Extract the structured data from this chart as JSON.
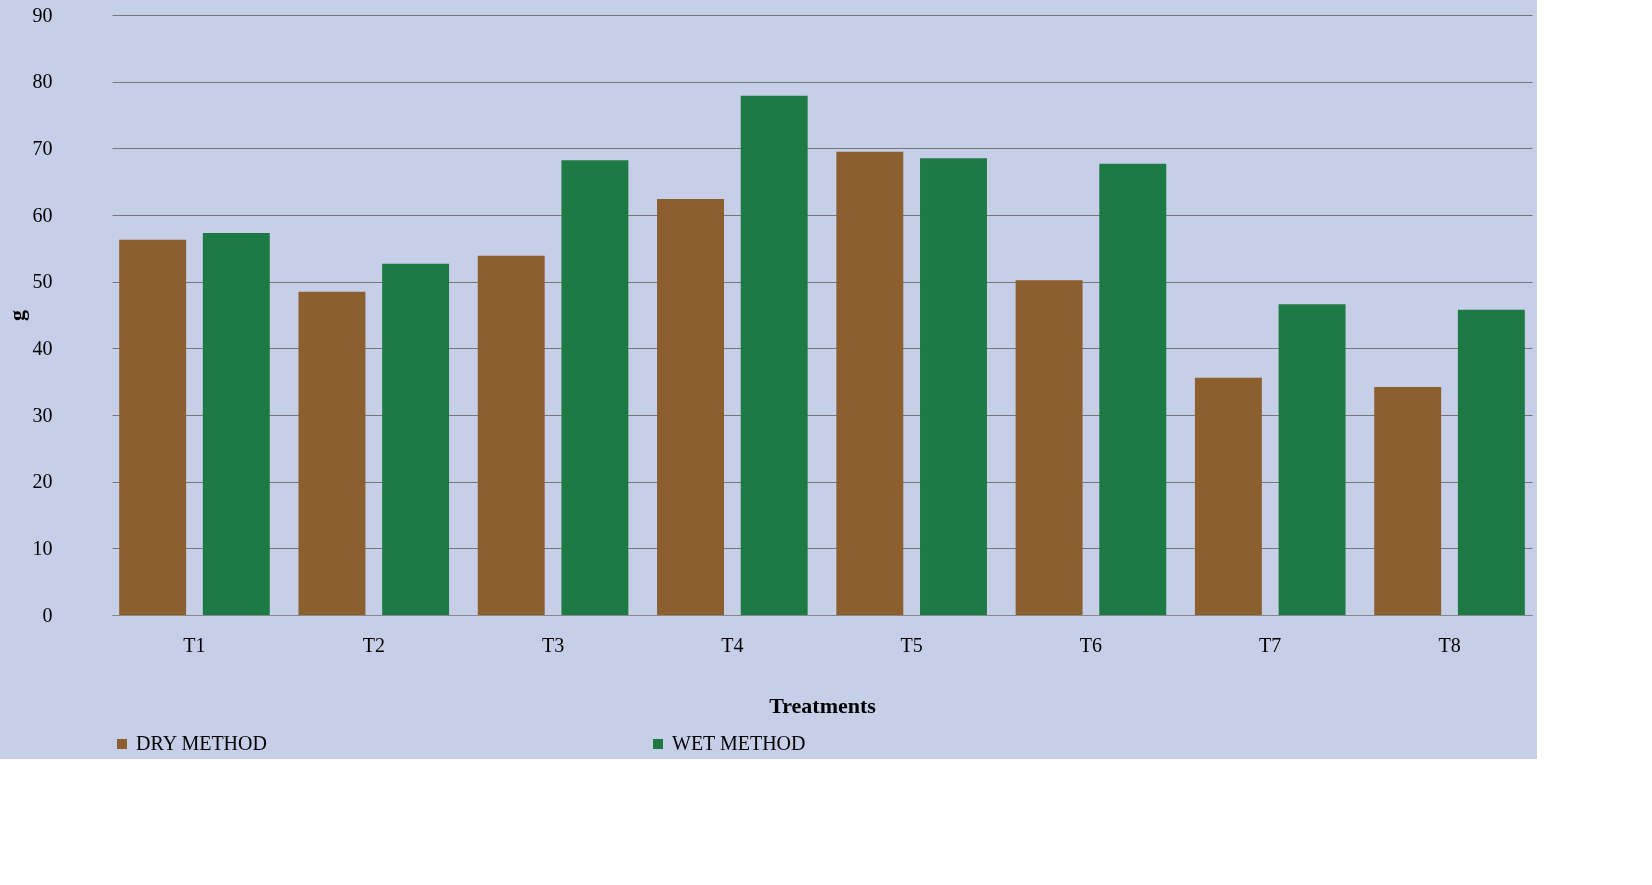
{
  "chart_data": {
    "type": "bar",
    "xlabel": "Treatments",
    "ylabel": "g",
    "categories": [
      "T1",
      "T2",
      "T3",
      "T4",
      "T5",
      "T6",
      "T7",
      "T8"
    ],
    "series": [
      {
        "name": "DRY METHOD",
        "color": "#8c5f2f",
        "values": [
          56.3,
          48.5,
          53.9,
          62.4,
          69.5,
          50.2,
          35.6,
          34.2
        ]
      },
      {
        "name": "WET METHOD",
        "color": "#1e7a45",
        "values": [
          57.3,
          52.7,
          68.2,
          77.9,
          68.5,
          67.7,
          46.6,
          45.8
        ]
      }
    ],
    "ylim": [
      0,
      90
    ],
    "yticks": [
      0,
      10,
      20,
      30,
      40,
      50,
      60,
      70,
      80,
      90
    ],
    "grid": "y",
    "legend": "bottom"
  }
}
